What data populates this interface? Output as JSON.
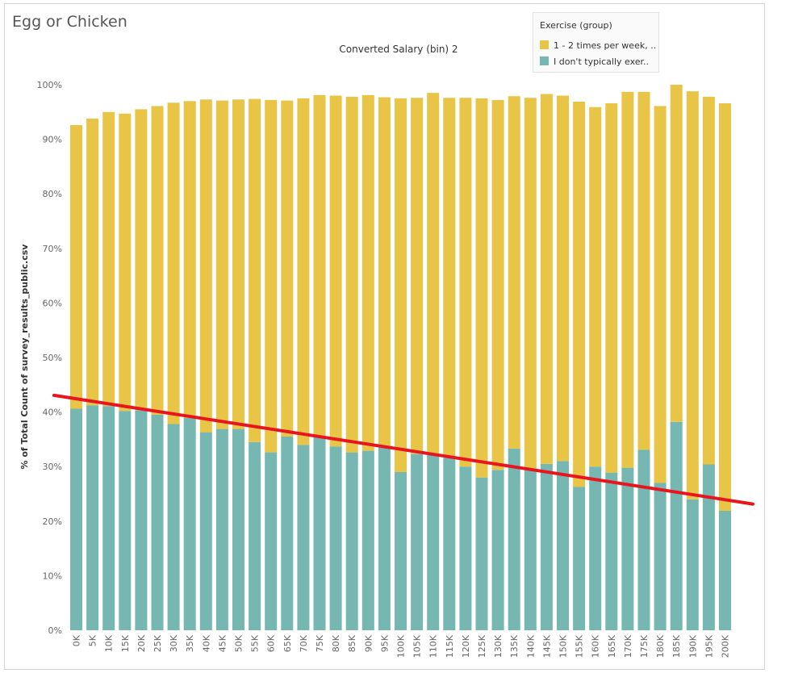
{
  "title": "Egg or Chicken",
  "legend": {
    "title": "Exercise (group)",
    "items": [
      {
        "label": "1 - 2 times per week, ..",
        "color": "#e8c547"
      },
      {
        "label": "I don't typically exer..",
        "color": "#76b7b2"
      }
    ]
  },
  "trend_color": "#e8141e",
  "chart_data": {
    "type": "bar",
    "stacked": true,
    "title": "Converted Salary (bin) 2",
    "xlabel": "",
    "ylabel": "% of Total Count of survey_results_public.csv",
    "ylim": [
      0,
      100
    ],
    "y_ticks": [
      "0%",
      "10%",
      "20%",
      "30%",
      "40%",
      "50%",
      "60%",
      "70%",
      "80%",
      "90%",
      "100%"
    ],
    "categories": [
      "0K",
      "5K",
      "10K",
      "15K",
      "20K",
      "25K",
      "30K",
      "35K",
      "40K",
      "45K",
      "50K",
      "55K",
      "60K",
      "65K",
      "70K",
      "75K",
      "80K",
      "85K",
      "90K",
      "95K",
      "100K",
      "105K",
      "110K",
      "115K",
      "120K",
      "125K",
      "130K",
      "135K",
      "140K",
      "145K",
      "150K",
      "155K",
      "160K",
      "165K",
      "170K",
      "175K",
      "180K",
      "185K",
      "190K",
      "195K",
      "200K"
    ],
    "series": [
      {
        "name": "I don't typically exer..",
        "color": "#76b7b2",
        "values": [
          40.6,
          41.2,
          41.1,
          40.2,
          40.3,
          39.5,
          37.8,
          38.9,
          36.3,
          36.9,
          36.9,
          34.5,
          32.6,
          35.5,
          34.0,
          35.5,
          33.7,
          32.6,
          32.9,
          33.5,
          29.0,
          32.3,
          32.1,
          31.6,
          30.0,
          28.0,
          29.4,
          33.3,
          29.7,
          30.5,
          31.0,
          26.3,
          30.0,
          28.9,
          29.8,
          33.1,
          27.0,
          38.2,
          24.0,
          30.4,
          21.9
        ]
      },
      {
        "name": "1 - 2 times per week, ..",
        "color": "#e8c547",
        "values": [
          52.0,
          52.6,
          53.9,
          54.5,
          55.2,
          56.6,
          58.9,
          58.1,
          61.0,
          60.2,
          60.4,
          62.9,
          64.6,
          61.6,
          63.5,
          62.6,
          64.3,
          65.2,
          65.2,
          64.2,
          68.5,
          65.3,
          66.4,
          66.0,
          67.6,
          69.5,
          67.8,
          64.6,
          67.9,
          67.8,
          67.0,
          70.6,
          65.9,
          67.7,
          68.9,
          65.6,
          69.1,
          61.8,
          74.8,
          67.4,
          74.7
        ]
      }
    ],
    "trend_line": {
      "x": [
        "0K",
        "200K"
      ],
      "y": [
        42.6,
        24.1
      ]
    },
    "grid": false,
    "legend_position": "top-right"
  }
}
